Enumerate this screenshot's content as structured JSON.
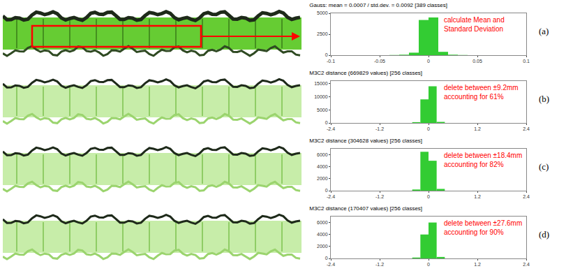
{
  "chart_data": [
    {
      "type": "histogram",
      "title": "Gauss: mean = 0.0007 / std.dev. = 0.0092 [389 classes]",
      "annotation": "calculate Mean and Standard Deviation",
      "panel_label": "(a)",
      "color": "#33cc33",
      "bins": [
        -0.1,
        -0.09,
        -0.08,
        -0.07,
        -0.06,
        -0.05,
        -0.04,
        -0.03,
        -0.02,
        -0.01,
        0,
        0.01,
        0.02,
        0.03,
        0.04,
        0.05,
        0.06,
        0.07,
        0.08,
        0.09,
        0.1
      ],
      "counts": [
        0,
        0,
        0,
        0,
        0,
        0,
        20,
        60,
        300,
        4200,
        4500,
        400,
        60,
        20,
        0,
        0,
        0,
        0,
        0,
        0
      ],
      "xlim": [
        -0.1,
        0.1
      ],
      "xticks": [
        -0.1,
        -0.05,
        0,
        0.05,
        0.1
      ],
      "ylim": [
        0,
        5000
      ],
      "yticks": [
        0,
        2500,
        5000
      ]
    },
    {
      "type": "histogram",
      "title": "M3C2 distance (669829 values) [256 classes]",
      "annotation": "delete between ±9.2mm accounting for 61%",
      "panel_label": "(b)",
      "color": "#33cc33",
      "bins": [
        -2.4,
        -2.2,
        -2.0,
        -1.8,
        -1.6,
        -1.4,
        -1.2,
        -1.0,
        -0.8,
        -0.6,
        -0.4,
        -0.2,
        0,
        0.2,
        0.4,
        0.6,
        0.8,
        1.0,
        1.2,
        1.4,
        1.6,
        1.8,
        2.0,
        2.2,
        2.4
      ],
      "counts": [
        0,
        0,
        0,
        0,
        0,
        0,
        0,
        0,
        0,
        0,
        300,
        9000,
        14000,
        400,
        0,
        0,
        0,
        0,
        0,
        0,
        0,
        0,
        0,
        0
      ],
      "xlim": [
        -2.4,
        2.4
      ],
      "xticks": [
        -2.4,
        -1.2,
        0,
        1.2,
        2.4
      ],
      "ylim": [
        0,
        16000
      ],
      "yticks": [
        0,
        5000,
        10000,
        15000
      ]
    },
    {
      "type": "histogram",
      "title": "M3C2 distance (304628 values) [256 classes]",
      "annotation": "delete between ±18.4mm accounting for 82%",
      "panel_label": "(c)",
      "color": "#33cc33",
      "bins": [
        -2.4,
        -2.2,
        -2.0,
        -1.8,
        -1.6,
        -1.4,
        -1.2,
        -1.0,
        -0.8,
        -0.6,
        -0.4,
        -0.2,
        0,
        0.2,
        0.4,
        0.6,
        0.8,
        1.0,
        1.2,
        1.4,
        1.6,
        1.8,
        2.0,
        2.2,
        2.4
      ],
      "counts": [
        0,
        0,
        0,
        0,
        0,
        0,
        0,
        0,
        0,
        0,
        200,
        6500,
        5000,
        300,
        0,
        0,
        0,
        0,
        0,
        0,
        0,
        0,
        0,
        0
      ],
      "xlim": [
        -2.4,
        2.4
      ],
      "xticks": [
        -2.4,
        -1.2,
        0,
        1.2,
        2.4
      ],
      "ylim": [
        0,
        7000
      ],
      "yticks": [
        0,
        2000,
        4000,
        6000
      ]
    },
    {
      "type": "histogram",
      "title": "M3C2 distance (170407 values) [256 classes]",
      "annotation": "delete between ±27.6mm accounting for 90%",
      "panel_label": "(d)",
      "color": "#33cc33",
      "bins": [
        -2.4,
        -2.2,
        -2.0,
        -1.8,
        -1.6,
        -1.4,
        -1.2,
        -1.0,
        -0.8,
        -0.6,
        -0.4,
        -0.2,
        0,
        0.2,
        0.4,
        0.6,
        0.8,
        1.0,
        1.2,
        1.4,
        1.6,
        1.8,
        2.0,
        2.2,
        2.4
      ],
      "counts": [
        0,
        0,
        0,
        0,
        0,
        0,
        0,
        0,
        0,
        0,
        150,
        4000,
        6000,
        250,
        0,
        0,
        0,
        0,
        0,
        0,
        0,
        0,
        0,
        0
      ],
      "xlim": [
        -2.4,
        2.4
      ],
      "xticks": [
        -2.4,
        -1.2,
        0,
        1.2,
        2.4
      ],
      "ylim": [
        0,
        7000
      ],
      "yticks": [
        0,
        2000,
        4000,
        6000
      ]
    }
  ]
}
